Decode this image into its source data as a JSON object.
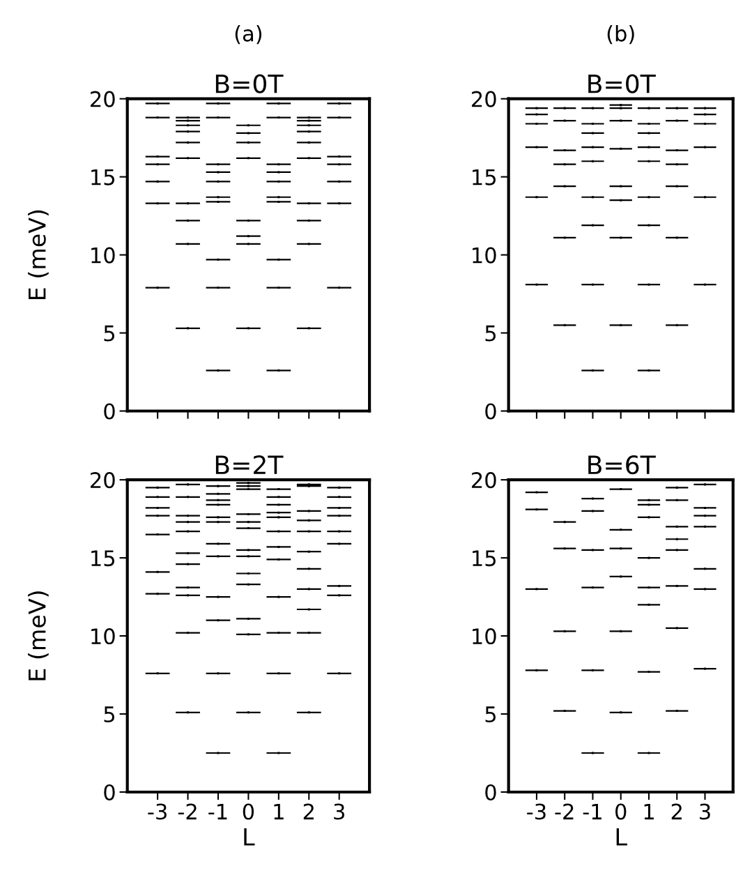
{
  "chart_data": [
    {
      "type": "scatter",
      "annotations": [
        "(a)"
      ],
      "title": "B=0T",
      "ylabel": "E (meV)",
      "marker": "square",
      "xlim": [
        -4,
        4
      ],
      "xticks": [
        -3,
        -2,
        -1,
        0,
        1,
        2,
        3
      ],
      "ylim": [
        0,
        20
      ],
      "yticks": [
        0,
        5,
        10,
        15,
        20
      ],
      "tick_labels": "y",
      "series": [
        {
          "color": "#000000",
          "x": [
            -3,
            -3,
            -3,
            -3,
            -3,
            -3,
            -3,
            -2,
            -2,
            -2,
            -2,
            -2,
            -2,
            -2,
            -2,
            -2,
            -2,
            -1,
            -1,
            -1,
            -1,
            -1,
            -1,
            -1,
            -1,
            -1,
            -1,
            0,
            0,
            0,
            0,
            0,
            0,
            0,
            0,
            1,
            1,
            1,
            1,
            1,
            1,
            1,
            1,
            1,
            1,
            2,
            2,
            2,
            2,
            2,
            2,
            2,
            2,
            2,
            2,
            3,
            3,
            3,
            3,
            3,
            3,
            3
          ],
          "values": [
            19.7,
            18.8,
            16.3,
            15.8,
            14.7,
            13.3,
            7.9,
            18.8,
            18.6,
            18.3,
            17.9,
            17.2,
            16.2,
            13.3,
            12.2,
            10.7,
            5.3,
            19.7,
            18.8,
            15.8,
            15.3,
            14.7,
            13.7,
            13.4,
            9.7,
            7.9,
            2.6,
            18.3,
            17.8,
            17.2,
            16.2,
            12.2,
            11.2,
            10.7,
            5.3,
            19.7,
            18.8,
            15.8,
            15.3,
            14.7,
            13.7,
            13.4,
            9.7,
            7.9,
            2.6,
            18.8,
            18.6,
            18.3,
            17.9,
            17.2,
            16.2,
            13.3,
            12.2,
            10.7,
            5.3,
            19.7,
            18.8,
            16.3,
            15.8,
            14.7,
            13.3,
            7.9
          ],
          "xerrors": [
            0.4,
            0.4,
            0.4,
            0.4,
            0.4,
            0.4,
            0.4,
            0.4,
            0.4,
            0.4,
            0.4,
            0.4,
            0.4,
            0.4,
            0.4,
            0.4,
            0.4,
            0.4,
            0.4,
            0.4,
            0.4,
            0.4,
            0.4,
            0.4,
            0.4,
            0.4,
            0.4,
            0.4,
            0.4,
            0.4,
            0.4,
            0.4,
            0.4,
            0.4,
            0.4,
            0.4,
            0.4,
            0.4,
            0.4,
            0.4,
            0.4,
            0.4,
            0.4,
            0.4,
            0.4,
            0.4,
            0.4,
            0.4,
            0.4,
            0.4,
            0.4,
            0.4,
            0.4,
            0.4,
            0.4,
            0.4,
            0.4,
            0.4,
            0.4,
            0.4,
            0.4,
            0.4
          ]
        }
      ]
    },
    {
      "type": "scatter",
      "annotations": [
        "(b)"
      ],
      "title": "B=0T",
      "marker": "square",
      "xlim": [
        -4,
        4
      ],
      "xticks": [
        -3,
        -2,
        -1,
        0,
        1,
        2,
        3
      ],
      "ylim": [
        0,
        20
      ],
      "yticks": [
        0,
        5,
        10,
        15,
        20
      ],
      "tick_labels": "y",
      "series": [
        {
          "color": "#000000",
          "x": [
            -3,
            -3,
            -3,
            -3,
            -3,
            -3,
            -2,
            -2,
            -2,
            -2,
            -2,
            -2,
            -2,
            -1,
            -1,
            -1,
            -1,
            -1,
            -1,
            -1,
            -1,
            -1,
            0,
            0,
            0,
            0,
            0,
            0,
            0,
            0,
            1,
            1,
            1,
            1,
            1,
            1,
            1,
            1,
            1,
            2,
            2,
            2,
            2,
            2,
            2,
            2,
            3,
            3,
            3,
            3,
            3,
            3
          ],
          "values": [
            19.4,
            19.0,
            18.4,
            16.9,
            13.7,
            8.1,
            19.4,
            18.6,
            16.7,
            15.8,
            14.4,
            11.1,
            5.5,
            19.4,
            18.4,
            17.8,
            16.9,
            16.0,
            13.7,
            11.9,
            8.1,
            2.6,
            19.6,
            19.4,
            18.6,
            16.8,
            14.4,
            13.5,
            11.1,
            5.5,
            19.4,
            18.4,
            17.8,
            16.9,
            16.0,
            13.7,
            11.9,
            8.1,
            2.6,
            19.4,
            18.6,
            16.7,
            15.8,
            14.4,
            11.1,
            5.5,
            19.4,
            19.0,
            18.4,
            16.9,
            13.7,
            8.1
          ],
          "xerrors": [
            0.4,
            0.4,
            0.4,
            0.4,
            0.4,
            0.4,
            0.4,
            0.4,
            0.4,
            0.4,
            0.4,
            0.4,
            0.4,
            0.4,
            0.4,
            0.4,
            0.4,
            0.4,
            0.4,
            0.4,
            0.4,
            0.4,
            0.4,
            0.4,
            0.4,
            0.4,
            0.4,
            0.4,
            0.4,
            0.4,
            0.4,
            0.4,
            0.4,
            0.4,
            0.4,
            0.4,
            0.4,
            0.4,
            0.4,
            0.4,
            0.4,
            0.4,
            0.4,
            0.4,
            0.4,
            0.4,
            0.4,
            0.4,
            0.4,
            0.4,
            0.4,
            0.4
          ]
        }
      ]
    },
    {
      "type": "scatter",
      "title": "B=2T",
      "xlabel": "L",
      "ylabel": "E (meV)",
      "marker": "square",
      "xlim": [
        -4,
        4
      ],
      "xticks": [
        -3,
        -2,
        -1,
        0,
        1,
        2,
        3
      ],
      "ylim": [
        0,
        20
      ],
      "yticks": [
        0,
        5,
        10,
        15,
        20
      ],
      "series": [
        {
          "color": "#000000",
          "x": [
            -3,
            -3,
            -3,
            -3,
            -3,
            -3,
            -3,
            -3,
            -2,
            -2,
            -2,
            -2,
            -2,
            -2,
            -2,
            -2,
            -2,
            -2,
            -2,
            -1,
            -1,
            -1,
            -1,
            -1,
            -1,
            -1,
            -1,
            -1,
            -1,
            -1,
            -1,
            0,
            0,
            0,
            0,
            0,
            0,
            0,
            0,
            0,
            0,
            0,
            0,
            0,
            1,
            1,
            1,
            1,
            1,
            1,
            1,
            1,
            1,
            1,
            1,
            1,
            2,
            2,
            2,
            2,
            2,
            2,
            2,
            2,
            2,
            2,
            2,
            3,
            3,
            3,
            3,
            3,
            3,
            3,
            3,
            3
          ],
          "values": [
            19.5,
            18.9,
            18.2,
            17.7,
            16.5,
            14.1,
            12.7,
            7.6,
            19.7,
            18.9,
            17.7,
            17.3,
            16.7,
            15.3,
            14.6,
            13.1,
            12.6,
            10.2,
            5.1,
            19.6,
            19.1,
            18.7,
            18.4,
            17.6,
            17.3,
            15.9,
            15.1,
            12.5,
            11.0,
            7.6,
            2.5,
            19.8,
            19.6,
            19.4,
            17.8,
            17.3,
            16.9,
            15.5,
            15.1,
            14.0,
            13.3,
            11.1,
            10.1,
            5.1,
            19.4,
            18.9,
            18.4,
            17.9,
            17.6,
            16.7,
            15.7,
            14.9,
            12.5,
            10.2,
            7.6,
            2.5,
            19.7,
            19.6,
            18.0,
            17.4,
            16.7,
            15.4,
            14.3,
            13.0,
            11.7,
            10.2,
            5.1,
            19.5,
            18.9,
            18.2,
            17.7,
            16.7,
            15.9,
            13.2,
            12.6,
            7.6
          ],
          "xerrors": [
            0.4,
            0.4,
            0.4,
            0.4,
            0.4,
            0.4,
            0.4,
            0.4,
            0.4,
            0.4,
            0.4,
            0.4,
            0.4,
            0.4,
            0.4,
            0.4,
            0.4,
            0.4,
            0.4,
            0.4,
            0.4,
            0.4,
            0.4,
            0.4,
            0.4,
            0.4,
            0.4,
            0.4,
            0.4,
            0.4,
            0.4,
            0.4,
            0.4,
            0.4,
            0.4,
            0.4,
            0.4,
            0.4,
            0.4,
            0.4,
            0.4,
            0.4,
            0.4,
            0.4,
            0.4,
            0.4,
            0.4,
            0.4,
            0.4,
            0.4,
            0.4,
            0.4,
            0.4,
            0.4,
            0.4,
            0.4,
            0.4,
            0.4,
            0.4,
            0.4,
            0.4,
            0.4,
            0.4,
            0.4,
            0.4,
            0.4,
            0.4,
            0.4,
            0.4,
            0.4,
            0.4,
            0.4,
            0.4,
            0.4,
            0.4,
            0.4
          ]
        }
      ]
    },
    {
      "type": "scatter",
      "title": "B=6T",
      "xlabel": "L",
      "marker": "square",
      "xlim": [
        -4,
        4
      ],
      "xticks": [
        -3,
        -2,
        -1,
        0,
        1,
        2,
        3
      ],
      "ylim": [
        0,
        20
      ],
      "yticks": [
        0,
        5,
        10,
        15,
        20
      ],
      "series": [
        {
          "color": "#000000",
          "x": [
            -3,
            -3,
            -3,
            -3,
            -2,
            -2,
            -2,
            -2,
            -1,
            -1,
            -1,
            -1,
            -1,
            -1,
            0,
            0,
            0,
            0,
            0,
            0,
            1,
            1,
            1,
            1,
            1,
            1,
            1,
            1,
            2,
            2,
            2,
            2,
            2,
            2,
            2,
            2,
            3,
            3,
            3,
            3,
            3,
            3,
            3
          ],
          "values": [
            19.2,
            18.1,
            13.0,
            7.8,
            17.3,
            15.6,
            10.3,
            5.2,
            18.8,
            18.0,
            15.5,
            13.1,
            7.8,
            2.5,
            19.4,
            16.8,
            15.6,
            13.8,
            10.3,
            5.1,
            18.7,
            18.4,
            17.6,
            15.0,
            13.1,
            12.0,
            7.7,
            2.5,
            19.5,
            18.7,
            17.0,
            16.2,
            15.5,
            13.2,
            10.5,
            5.2,
            19.7,
            18.2,
            17.7,
            17.0,
            14.3,
            13.0,
            7.9
          ],
          "xerrors": [
            0.4,
            0.4,
            0.4,
            0.4,
            0.4,
            0.4,
            0.4,
            0.4,
            0.4,
            0.4,
            0.4,
            0.4,
            0.4,
            0.4,
            0.4,
            0.4,
            0.4,
            0.4,
            0.4,
            0.4,
            0.4,
            0.4,
            0.4,
            0.4,
            0.4,
            0.4,
            0.4,
            0.4,
            0.4,
            0.4,
            0.4,
            0.4,
            0.4,
            0.4,
            0.4,
            0.4,
            0.4,
            0.4,
            0.4,
            0.4,
            0.4,
            0.4,
            0.4
          ]
        }
      ]
    }
  ]
}
